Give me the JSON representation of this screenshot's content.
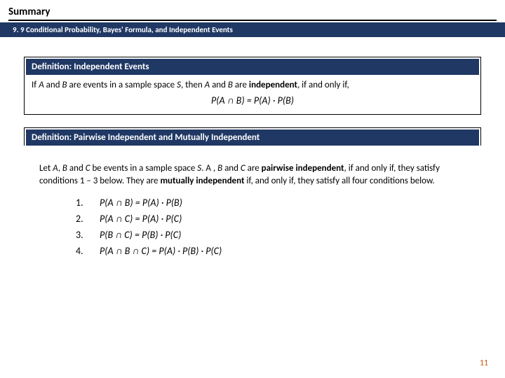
{
  "title": "Summary",
  "subtitle": "9. 9 Conditional Probability, Bayes' Formula, and Independent Events",
  "def1": {
    "header": "Definition: Independent Events",
    "body_pre": "If ",
    "body_mid": " are events in a sample space ",
    "body_post": " are ",
    "body_tail": ", if and only if,",
    "A": "A",
    "B": "B",
    "and": " and ",
    "S": "S",
    "then": ", then ",
    "independent": "independent",
    "formula": "P(A ∩ B) = P(A) · P(B)"
  },
  "def2": {
    "header": "Definition: Pairwise Independent and Mutually Independent",
    "line1a": "Let ",
    "line1b": " be events in a sample space ",
    "line1c": " are ",
    "pairwise": "pairwise independent",
    "line2a": ", if and only if, they satisfy conditions 1 – 3 below. They are ",
    "mutually": "mutually independent",
    "line2b": " if, and only if, they satisfy all four conditions below.",
    "A": "A",
    "B": "B",
    "C": "C",
    "S": "S",
    "comma": ", ",
    "and": " and ",
    "dotA": ". A ",
    "conds": [
      {
        "n": "1.",
        "f": "P(A ∩ B) = P(A) · P(B)"
      },
      {
        "n": "2.",
        "f": "P(A ∩ C) = P(A) · P(C)"
      },
      {
        "n": "3.",
        "f": "P(B ∩ C) = P(B) · P(C)"
      },
      {
        "n": "4.",
        "f": "P(A ∩ B ∩ C) = P(A) · P(B) · P(C)"
      }
    ]
  },
  "pageNumber": "11"
}
